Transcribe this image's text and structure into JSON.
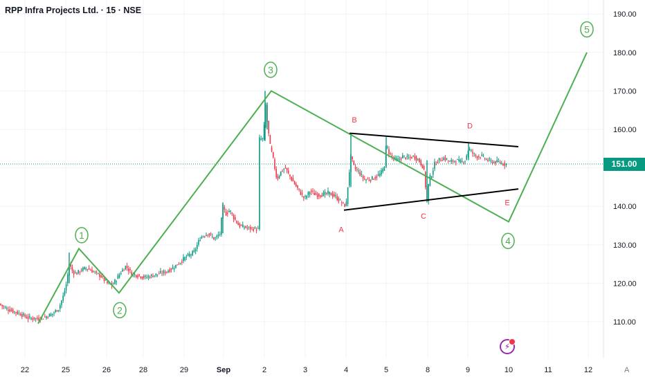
{
  "header": {
    "title": "RPP Infra Projects Ltd. · 15 · NSE"
  },
  "price_axis": {
    "last_price_label": "151.00",
    "auto_label": "A"
  },
  "colors": {
    "up": "#089981",
    "down": "#f23645",
    "wave": "#4caf50",
    "trendline": "#000000",
    "triangle_label": "#f23645",
    "grid": "#f0f3fa",
    "axis_text": "#131722",
    "price_line": "#089981"
  },
  "icons": {
    "logo": "bolt-icon"
  },
  "chart_data": {
    "type": "candlestick",
    "ylim": [
      103,
      195
    ],
    "y_ticks": [
      110,
      120,
      130,
      140,
      150,
      160,
      170,
      180,
      190
    ],
    "y_tick_labels": [
      "110.00",
      "120.00",
      "130.00",
      "140.00",
      "150.00",
      "160.00",
      "170.00",
      "180.00",
      "190.00"
    ],
    "x_tick_labels": [
      "22",
      "25",
      "26",
      "28",
      "29",
      "Sep",
      "2",
      "3",
      "4",
      "5",
      "8",
      "9",
      "10",
      "11",
      "12"
    ],
    "last_price": 151.0,
    "price_path": [
      [
        0,
        114.5
      ],
      [
        8,
        113.5
      ],
      [
        18,
        112.8
      ],
      [
        30,
        112
      ],
      [
        40,
        111
      ],
      [
        55,
        110.8
      ],
      [
        65,
        111.2
      ],
      [
        75,
        112
      ],
      [
        85,
        113.5
      ],
      [
        92,
        117
      ],
      [
        96,
        120
      ],
      [
        100,
        125
      ],
      [
        105,
        123
      ],
      [
        110,
        122.5
      ],
      [
        118,
        123.5
      ],
      [
        125,
        124
      ],
      [
        135,
        123
      ],
      [
        145,
        122
      ],
      [
        155,
        120
      ],
      [
        162,
        119.5
      ],
      [
        168,
        121
      ],
      [
        175,
        123
      ],
      [
        182,
        124.5
      ],
      [
        190,
        122.5
      ],
      [
        200,
        122
      ],
      [
        210,
        121.5
      ],
      [
        220,
        122
      ],
      [
        230,
        122.5
      ],
      [
        240,
        123
      ],
      [
        250,
        124
      ],
      [
        260,
        125.5
      ],
      [
        270,
        127
      ],
      [
        280,
        128
      ],
      [
        290,
        132
      ],
      [
        300,
        133
      ],
      [
        310,
        131.5
      ],
      [
        318,
        133
      ],
      [
        322,
        140
      ],
      [
        326,
        138
      ],
      [
        332,
        139
      ],
      [
        338,
        137
      ],
      [
        345,
        135
      ],
      [
        355,
        134.5
      ],
      [
        365,
        134.2
      ],
      [
        373,
        134
      ],
      [
        375,
        157.5
      ],
      [
        381,
        157.5
      ],
      [
        383,
        168
      ],
      [
        386,
        162
      ],
      [
        390,
        156
      ],
      [
        395,
        152
      ],
      [
        400,
        147
      ],
      [
        406,
        149
      ],
      [
        412,
        150
      ],
      [
        418,
        148
      ],
      [
        425,
        146
      ],
      [
        432,
        144
      ],
      [
        440,
        142
      ],
      [
        448,
        144
      ],
      [
        456,
        143
      ],
      [
        465,
        143
      ],
      [
        475,
        143.5
      ],
      [
        485,
        142.5
      ],
      [
        493,
        141
      ],
      [
        500,
        140
      ],
      [
        503,
        146
      ],
      [
        507,
        153
      ],
      [
        512,
        150
      ],
      [
        518,
        149
      ],
      [
        526,
        147
      ],
      [
        534,
        147
      ],
      [
        542,
        147.5
      ],
      [
        550,
        148.5
      ],
      [
        555,
        150
      ],
      [
        558,
        156
      ],
      [
        562,
        154
      ],
      [
        568,
        152.5
      ],
      [
        575,
        152
      ],
      [
        582,
        153
      ],
      [
        590,
        152.5
      ],
      [
        598,
        153
      ],
      [
        605,
        152
      ],
      [
        612,
        150
      ],
      [
        617,
        141.5
      ],
      [
        620,
        147
      ],
      [
        624,
        148.5
      ],
      [
        628,
        151
      ],
      [
        634,
        152
      ],
      [
        642,
        152.5
      ],
      [
        650,
        151.5
      ],
      [
        658,
        152
      ],
      [
        666,
        151.5
      ],
      [
        672,
        152
      ],
      [
        677,
        155
      ],
      [
        682,
        154
      ],
      [
        688,
        153
      ],
      [
        696,
        153
      ],
      [
        704,
        152
      ],
      [
        712,
        151.5
      ],
      [
        720,
        151.5
      ],
      [
        728,
        151
      ],
      [
        732,
        151
      ]
    ],
    "elliott_wave": [
      {
        "label": "1",
        "time": "25",
        "price": 129
      },
      {
        "label": "2",
        "time": "26",
        "price": 117.5
      },
      {
        "label": "3",
        "time": "2",
        "price": 170
      },
      {
        "label": "4",
        "time": "10",
        "price": 136
      },
      {
        "label": "5",
        "time": "12",
        "price": 180
      }
    ],
    "triangle_upper": [
      [
        505,
        159
      ],
      [
        749,
        155.5
      ]
    ],
    "triangle_lower": [
      [
        497,
        139
      ],
      [
        749,
        144.5
      ]
    ],
    "wave_path": [
      [
        55,
        109.5
      ],
      [
        114,
        129
      ],
      [
        172,
        117.5
      ],
      [
        392,
        170
      ],
      [
        735,
        136
      ],
      [
        848,
        180
      ]
    ],
    "triangle_labels": [
      {
        "label": "A",
        "x": 493,
        "price": 134
      },
      {
        "label": "B",
        "x": 512,
        "price": 162.5
      },
      {
        "label": "C",
        "x": 612,
        "price": 137.5
      },
      {
        "label": "D",
        "x": 679,
        "price": 161
      },
      {
        "label": "E",
        "x": 733,
        "price": 141
      }
    ],
    "wave_label_positions": [
      {
        "label": "1",
        "x": 118,
        "price": 132.5
      },
      {
        "label": "2",
        "x": 173,
        "price": 113
      },
      {
        "label": "3",
        "x": 391,
        "price": 175.5
      },
      {
        "label": "4",
        "x": 734,
        "price": 131
      },
      {
        "label": "5",
        "x": 848,
        "price": 186
      }
    ]
  }
}
